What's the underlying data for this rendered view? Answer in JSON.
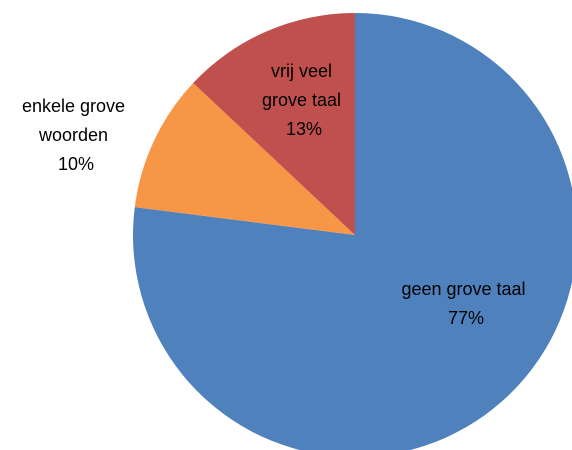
{
  "chart_data": {
    "type": "pie",
    "title": "",
    "slices": [
      {
        "label_lines": [
          "geen grove taal"
        ],
        "value": 77,
        "value_label": "77%",
        "color": "#4F81BD"
      },
      {
        "label_lines": [
          "enkele grove",
          "woorden"
        ],
        "value": 10,
        "value_label": "10%",
        "color": "#F79646"
      },
      {
        "label_lines": [
          "vrij veel",
          "grove taal"
        ],
        "value": 13,
        "value_label": "13%",
        "color": "#C0504D"
      }
    ],
    "start_angle_deg": 0,
    "direction": "clockwise",
    "legend": "none",
    "data_labels": "inside/outside with category name and percent"
  }
}
